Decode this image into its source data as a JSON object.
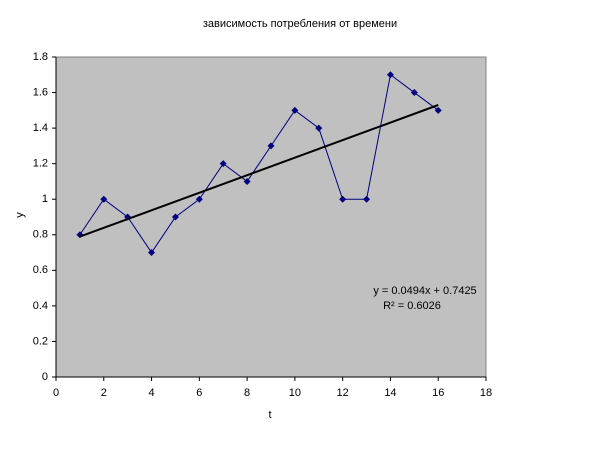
{
  "chart_data": {
    "type": "line",
    "title": "зависимость потребления от времени",
    "x_label": "t",
    "y_label": "y",
    "series": [
      {
        "name": "y",
        "color": "#000080",
        "marker": "diamond",
        "x": [
          1,
          2,
          3,
          4,
          5,
          6,
          7,
          8,
          9,
          10,
          11,
          12,
          13,
          14,
          15,
          16
        ],
        "values": [
          0.8,
          1.0,
          0.9,
          0.7,
          0.9,
          1.0,
          1.2,
          1.1,
          1.3,
          1.5,
          1.4,
          1.0,
          1.0,
          1.7,
          1.6,
          1.5
        ]
      },
      {
        "name": "Linear trend",
        "color": "#000000",
        "marker": "none",
        "x": [
          1,
          16
        ],
        "values": [
          0.79,
          1.53
        ]
      }
    ],
    "annotations": [
      "y = 0.0494x + 0.7425",
      "R² = 0.6026"
    ],
    "xlim": [
      0,
      18
    ],
    "xticks": [
      0,
      2,
      4,
      6,
      8,
      10,
      12,
      14,
      16,
      18
    ],
    "ylim": [
      0,
      1.8
    ],
    "yticks": [
      0,
      0.2,
      0.4,
      0.6,
      0.8,
      1,
      1.2,
      1.4,
      1.6,
      1.8
    ],
    "plot_background": "#c0c0c0",
    "grid": false
  }
}
